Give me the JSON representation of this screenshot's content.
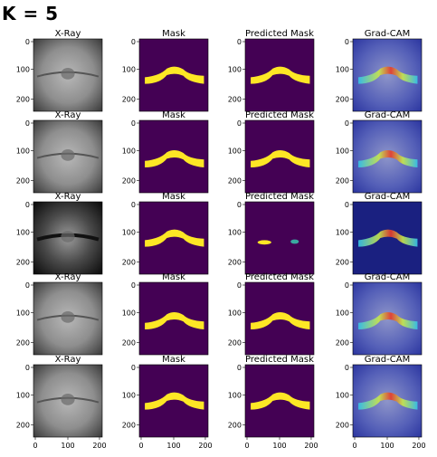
{
  "figure": {
    "heading": "K = 5",
    "column_titles": [
      "X-Ray",
      "Mask",
      "Predicted Mask",
      "Grad-CAM"
    ],
    "y_ticks": [
      "0",
      "100",
      "200"
    ],
    "x_ticks": [
      "0",
      "100",
      "200"
    ],
    "rows": 5,
    "colors": {
      "mask_background": "#440154",
      "mask_foreground": "#fde725",
      "xray_gray": "#8a8a8a",
      "gradcam_tint": "#3f4fc9"
    }
  }
}
